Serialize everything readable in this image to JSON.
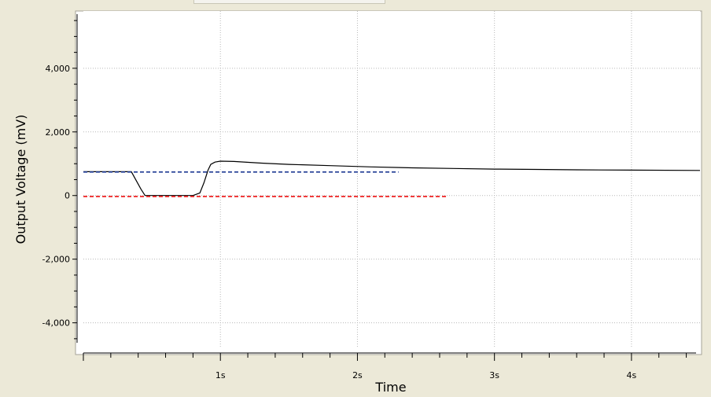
{
  "chart_data": {
    "type": "line",
    "title": "",
    "xlabel": "Time",
    "ylabel": "Output Voltage (mV)",
    "xlim": [
      0,
      4.5
    ],
    "ylim": [
      -4800,
      5800
    ],
    "grid": true,
    "x_ticks": [
      {
        "value": 1,
        "label": "1s"
      },
      {
        "value": 2,
        "label": "2s"
      },
      {
        "value": 3,
        "label": "3s"
      },
      {
        "value": 4,
        "label": "4s"
      }
    ],
    "y_ticks": [
      {
        "value": 4000,
        "label": "4,000"
      },
      {
        "value": 2000,
        "label": "2,000"
      },
      {
        "value": 0,
        "label": "0"
      },
      {
        "value": -2000,
        "label": "-2,000"
      },
      {
        "value": -4000,
        "label": "-4,000"
      }
    ],
    "series": [
      {
        "color": "#000000",
        "style": "solid",
        "x": [
          0,
          0.35,
          0.42,
          0.45,
          0.8,
          0.85,
          0.88,
          0.91,
          0.93,
          0.96,
          1.0,
          1.1,
          1.3,
          1.5,
          1.8,
          2.1,
          2.4,
          2.7,
          3.0,
          3.3,
          3.6,
          4.0,
          4.5
        ],
        "y": [
          750,
          750,
          200,
          0,
          0,
          80,
          400,
          800,
          980,
          1050,
          1080,
          1070,
          1020,
          980,
          940,
          900,
          870,
          850,
          830,
          820,
          810,
          800,
          790
        ]
      },
      {
        "color": "#1f3a93",
        "style": "dashed",
        "x": [
          0,
          2.3
        ],
        "y": [
          740,
          740
        ]
      },
      {
        "color": "#ee1111",
        "style": "dashed",
        "x": [
          0,
          2.65
        ],
        "y": [
          -30,
          -30
        ]
      }
    ]
  }
}
